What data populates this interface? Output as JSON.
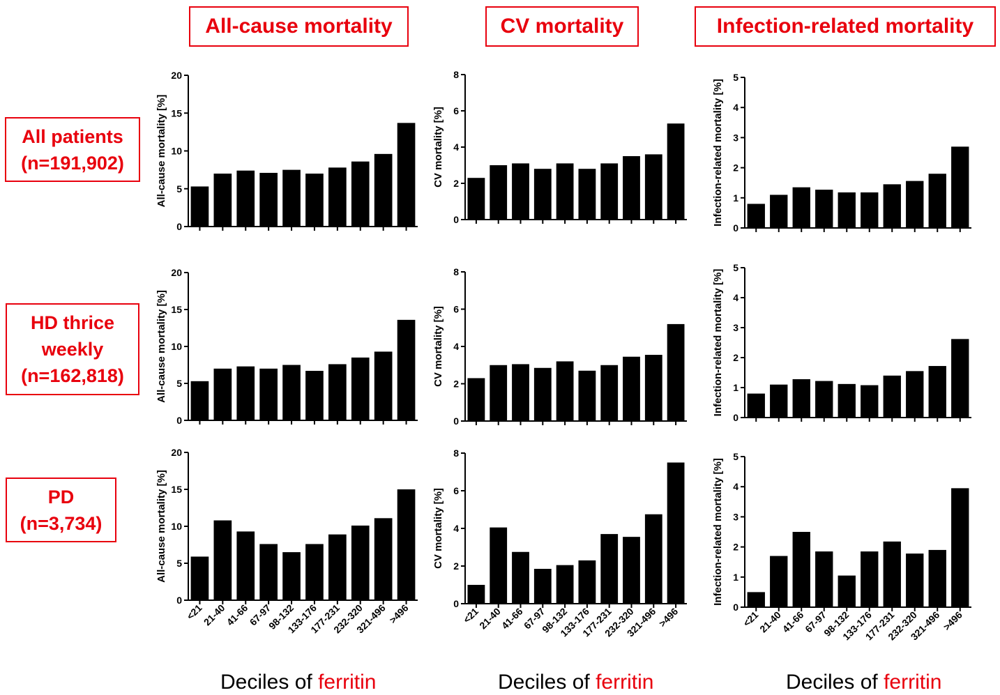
{
  "columns": [
    {
      "title": "All-cause mortality"
    },
    {
      "title": "CV mortality"
    },
    {
      "title": "Infection-related mortality"
    }
  ],
  "rows": [
    {
      "line1": "All patients",
      "line2": "(n=191,902)",
      "line3": ""
    },
    {
      "line1": "HD thrice",
      "line2": "weekly",
      "line3": "(n=162,818)"
    },
    {
      "line1": "PD",
      "line2": "(n=3,734)",
      "line3": ""
    }
  ],
  "footer": {
    "prefix": "Deciles of ",
    "highlight": "ferritin"
  },
  "chart_data": {
    "type": "bar",
    "categories": [
      "<21",
      "21-40",
      "41-66",
      "67-97",
      "98-132",
      "133-176",
      "177-231",
      "232-320",
      "321-496",
      ">496"
    ],
    "panels": [
      {
        "row": 0,
        "col": 0,
        "ylabel": "All-cause mortality [%]",
        "ylim": [
          0,
          20
        ],
        "ticks": [
          0,
          5,
          10,
          15,
          20
        ],
        "values": [
          5.3,
          7.0,
          7.4,
          7.1,
          7.5,
          7.0,
          7.8,
          8.6,
          9.6,
          13.7
        ]
      },
      {
        "row": 0,
        "col": 1,
        "ylabel": "CV mortality [%]",
        "ylim": [
          0,
          8
        ],
        "ticks": [
          0,
          2,
          4,
          6,
          8
        ],
        "values": [
          2.3,
          3.0,
          3.1,
          2.8,
          3.1,
          2.8,
          3.1,
          3.5,
          3.6,
          5.3
        ]
      },
      {
        "row": 0,
        "col": 2,
        "ylabel": "Infection-related mortality [%]",
        "ylim": [
          0,
          5
        ],
        "ticks": [
          0,
          1,
          2,
          3,
          4,
          5
        ],
        "values": [
          0.8,
          1.1,
          1.35,
          1.27,
          1.18,
          1.18,
          1.45,
          1.56,
          1.8,
          2.7
        ]
      },
      {
        "row": 1,
        "col": 0,
        "ylabel": "All-cause mortality [%]",
        "ylim": [
          0,
          20
        ],
        "ticks": [
          0,
          5,
          10,
          15,
          20
        ],
        "values": [
          5.3,
          7.0,
          7.3,
          7.0,
          7.5,
          6.7,
          7.6,
          8.5,
          9.3,
          13.6
        ]
      },
      {
        "row": 1,
        "col": 1,
        "ylabel": "CV mortality [%]",
        "ylim": [
          0,
          8
        ],
        "ticks": [
          0,
          2,
          4,
          6,
          8
        ],
        "values": [
          2.3,
          3.0,
          3.05,
          2.85,
          3.2,
          2.7,
          3.0,
          3.45,
          3.55,
          5.2
        ]
      },
      {
        "row": 1,
        "col": 2,
        "ylabel": "Infection-related mortality [%]",
        "ylim": [
          0,
          5
        ],
        "ticks": [
          0,
          1,
          2,
          3,
          4,
          5
        ],
        "values": [
          0.8,
          1.1,
          1.28,
          1.22,
          1.12,
          1.08,
          1.4,
          1.55,
          1.72,
          2.62
        ]
      },
      {
        "row": 2,
        "col": 0,
        "ylabel": "All-cause mortality [%]",
        "ylim": [
          0,
          20
        ],
        "ticks": [
          0,
          5,
          10,
          15,
          20
        ],
        "values": [
          5.9,
          10.8,
          9.3,
          7.6,
          6.5,
          7.6,
          8.9,
          10.1,
          11.1,
          15.0
        ]
      },
      {
        "row": 2,
        "col": 1,
        "ylabel": "CV mortality [%]",
        "ylim": [
          0,
          8
        ],
        "ticks": [
          0,
          2,
          4,
          6,
          8
        ],
        "values": [
          1.0,
          4.05,
          2.75,
          1.85,
          2.05,
          2.3,
          3.7,
          3.55,
          4.75,
          7.5
        ]
      },
      {
        "row": 2,
        "col": 2,
        "ylabel": "Infection-related mortality [%]",
        "ylim": [
          0,
          5
        ],
        "ticks": [
          0,
          1,
          2,
          3,
          4,
          5
        ],
        "values": [
          0.5,
          1.7,
          2.5,
          1.85,
          1.05,
          1.85,
          2.18,
          1.78,
          1.9,
          3.95
        ]
      }
    ]
  }
}
